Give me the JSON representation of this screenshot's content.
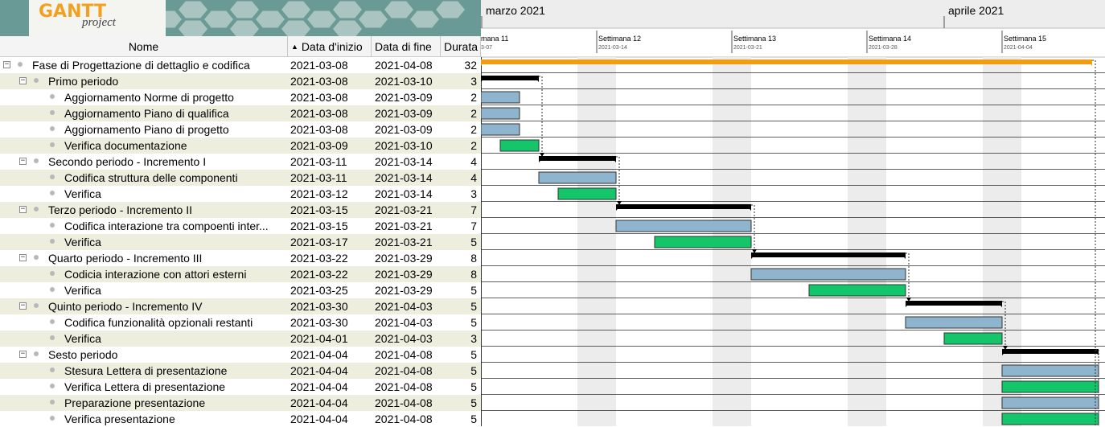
{
  "app": {
    "logo_text": "GANTT",
    "logo_sub": "project"
  },
  "columns": {
    "name": "Nome",
    "start": "Data d'inizio",
    "end": "Data di fine",
    "duration": "Durata",
    "sort_icon": "sort-up-icon"
  },
  "timeline": {
    "months": [
      "marzo 2021",
      "aprile 2021"
    ],
    "weeks": [
      {
        "label": "mana  11",
        "date": "3-07"
      },
      {
        "label": "Settimana  12",
        "date": "2021-03-14"
      },
      {
        "label": "Settimana  13",
        "date": "2021-03-21"
      },
      {
        "label": "Settimana  14",
        "date": "2021-03-28"
      },
      {
        "label": "Settimana  15",
        "date": "2021-04-04"
      }
    ]
  },
  "colors": {
    "task_blue": "#8fb4cd",
    "task_green": "#13c66a",
    "summary": "#000000",
    "root_summary": "#f39c12",
    "weekend": "#ececec",
    "row_alt": "#eeeede"
  },
  "tasks": [
    {
      "name": "Fase di Progettazione di dettaglio e codifica",
      "start": "2021-03-08",
      "end": "2021-04-08",
      "duration": "32",
      "level": 0,
      "kind": "root"
    },
    {
      "name": "Primo periodo",
      "start": "2021-03-08",
      "end": "2021-03-10",
      "duration": "3",
      "level": 1,
      "kind": "summary"
    },
    {
      "name": "Aggiornamento Norme di progetto",
      "start": "2021-03-08",
      "end": "2021-03-09",
      "duration": "2",
      "level": 2,
      "kind": "blue"
    },
    {
      "name": "Aggiornamento Piano di qualifica",
      "start": "2021-03-08",
      "end": "2021-03-09",
      "duration": "2",
      "level": 2,
      "kind": "blue"
    },
    {
      "name": "Aggiornamento Piano di progetto",
      "start": "2021-03-08",
      "end": "2021-03-09",
      "duration": "2",
      "level": 2,
      "kind": "blue"
    },
    {
      "name": "Verifica documentazione",
      "start": "2021-03-09",
      "end": "2021-03-10",
      "duration": "2",
      "level": 2,
      "kind": "green"
    },
    {
      "name": "Secondo periodo - Incremento I",
      "start": "2021-03-11",
      "end": "2021-03-14",
      "duration": "4",
      "level": 1,
      "kind": "summary"
    },
    {
      "name": "Codifica struttura delle componenti",
      "start": "2021-03-11",
      "end": "2021-03-14",
      "duration": "4",
      "level": 2,
      "kind": "blue"
    },
    {
      "name": "Verifica",
      "start": "2021-03-12",
      "end": "2021-03-14",
      "duration": "3",
      "level": 2,
      "kind": "green"
    },
    {
      "name": "Terzo periodo - Incremento II",
      "start": "2021-03-15",
      "end": "2021-03-21",
      "duration": "7",
      "level": 1,
      "kind": "summary"
    },
    {
      "name": "Codifica interazione tra compoenti inter...",
      "start": "2021-03-15",
      "end": "2021-03-21",
      "duration": "7",
      "level": 2,
      "kind": "blue"
    },
    {
      "name": "Verifica",
      "start": "2021-03-17",
      "end": "2021-03-21",
      "duration": "5",
      "level": 2,
      "kind": "green"
    },
    {
      "name": "Quarto periodo - Incremento III",
      "start": "2021-03-22",
      "end": "2021-03-29",
      "duration": "8",
      "level": 1,
      "kind": "summary"
    },
    {
      "name": "Codicia interazione con attori esterni",
      "start": "2021-03-22",
      "end": "2021-03-29",
      "duration": "8",
      "level": 2,
      "kind": "blue"
    },
    {
      "name": "Verifica",
      "start": "2021-03-25",
      "end": "2021-03-29",
      "duration": "5",
      "level": 2,
      "kind": "green"
    },
    {
      "name": "Quinto periodo - Incremento IV",
      "start": "2021-03-30",
      "end": "2021-04-03",
      "duration": "5",
      "level": 1,
      "kind": "summary"
    },
    {
      "name": "Codifica funzionalità opzionali restanti",
      "start": "2021-03-30",
      "end": "2021-04-03",
      "duration": "5",
      "level": 2,
      "kind": "blue"
    },
    {
      "name": "Verifica",
      "start": "2021-04-01",
      "end": "2021-04-03",
      "duration": "3",
      "level": 2,
      "kind": "green"
    },
    {
      "name": "Sesto periodo",
      "start": "2021-04-04",
      "end": "2021-04-08",
      "duration": "5",
      "level": 1,
      "kind": "summary"
    },
    {
      "name": "Stesura Lettera di presentazione",
      "start": "2021-04-04",
      "end": "2021-04-08",
      "duration": "5",
      "level": 2,
      "kind": "blue"
    },
    {
      "name": "Verifica Lettera di presentazione",
      "start": "2021-04-04",
      "end": "2021-04-08",
      "duration": "5",
      "level": 2,
      "kind": "green"
    },
    {
      "name": "Preparazione presentazione",
      "start": "2021-04-04",
      "end": "2021-04-08",
      "duration": "5",
      "level": 2,
      "kind": "blue"
    },
    {
      "name": "Verifica presentazione",
      "start": "2021-04-04",
      "end": "2021-04-08",
      "duration": "5",
      "level": 2,
      "kind": "green"
    }
  ]
}
